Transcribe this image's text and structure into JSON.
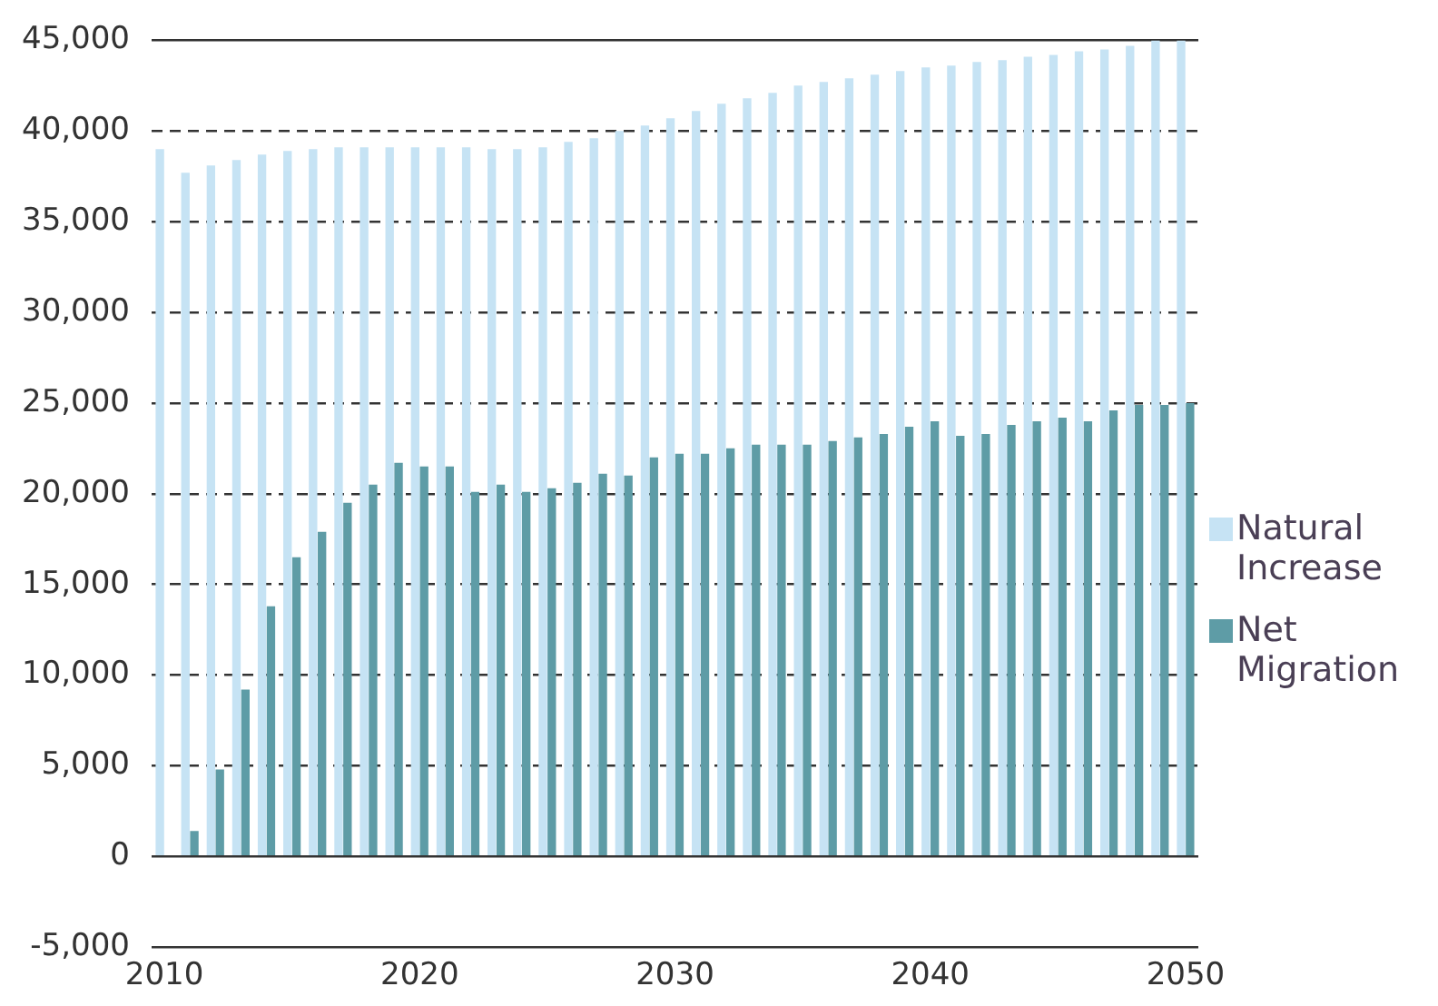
{
  "chart_data": {
    "type": "bar",
    "categories": [
      "2010",
      null,
      null,
      null,
      null,
      null,
      null,
      null,
      null,
      null,
      "2020",
      null,
      null,
      null,
      null,
      null,
      null,
      null,
      null,
      null,
      "2030",
      null,
      null,
      null,
      null,
      null,
      null,
      null,
      null,
      null,
      "2040",
      null,
      null,
      null,
      null,
      null,
      null,
      null,
      null,
      null,
      "2050"
    ],
    "series": [
      {
        "name": "Natural Increase",
        "color": "#c6e3f4",
        "values": [
          39000,
          37700,
          38100,
          38400,
          38700,
          38900,
          39000,
          39100,
          39100,
          39100,
          39100,
          39100,
          39100,
          39000,
          39000,
          39100,
          39400,
          39600,
          40000,
          40300,
          40700,
          41100,
          41500,
          41800,
          42100,
          42500,
          42700,
          42900,
          43100,
          43300,
          43500,
          43600,
          43800,
          43900,
          44100,
          44200,
          44400,
          44500,
          44700,
          45000,
          45000
        ]
      },
      {
        "name": "Net Migration",
        "color": "#5e9ca6",
        "values": [
          0,
          1400,
          4800,
          9200,
          13800,
          16500,
          17900,
          19500,
          20500,
          21700,
          21500,
          21500,
          20100,
          20500,
          20100,
          20300,
          20600,
          21100,
          21000,
          22000,
          22200,
          22200,
          22500,
          22700,
          22700,
          22700,
          22900,
          23100,
          23300,
          23700,
          24000,
          23200,
          23300,
          23800,
          24000,
          24200,
          24000,
          24600,
          24900,
          24900,
          25000
        ]
      }
    ],
    "ylim": [
      -5000,
      45000
    ],
    "yticks": [
      {
        "value": -5000,
        "label": "-5,000"
      },
      0,
      {
        "value": 5000,
        "label": "5,000"
      },
      {
        "value": 10000,
        "label": "10,000"
      },
      {
        "value": 15000,
        "label": "15,000"
      },
      {
        "value": 20000,
        "label": "20,000"
      },
      {
        "value": 25000,
        "label": "25,000"
      },
      {
        "value": 30000,
        "label": "30,000"
      },
      {
        "value": 35000,
        "label": "35,000"
      },
      {
        "value": 40000,
        "label": "40,000"
      },
      {
        "value": 45000,
        "label": "45,000"
      }
    ],
    "grid": "y",
    "legend": "right"
  }
}
